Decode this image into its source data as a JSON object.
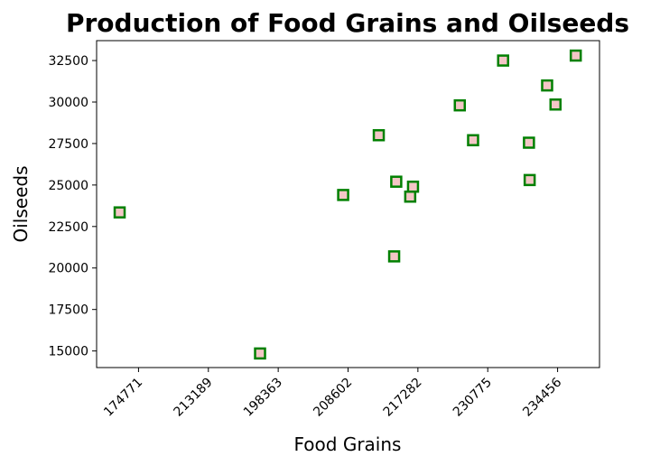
{
  "chart_data": {
    "type": "scatter",
    "title": "Production of Food Grains and Oilseeds",
    "xlabel": "Food Grains",
    "ylabel": "Oilseeds",
    "x_tick_labels": [
      "174771",
      "213189",
      "198363",
      "208602",
      "217282",
      "230775",
      "234456"
    ],
    "y_ticks": [
      15000,
      17500,
      20000,
      22500,
      25000,
      27500,
      30000,
      32500
    ],
    "y_tick_labels": [
      "15000",
      "17500",
      "20000",
      "22500",
      "25000",
      "27500",
      "30000",
      "32500"
    ],
    "xlim": [
      -0.6,
      6.6
    ],
    "ylim": [
      14000,
      33700
    ],
    "grid": false,
    "marker": {
      "shape": "square",
      "face_color": "#f4c6c6",
      "edge_color": "#008000"
    },
    "points": [
      {
        "x": -0.27,
        "y": 23350
      },
      {
        "x": 1.74,
        "y": 14850
      },
      {
        "x": 2.93,
        "y": 24400
      },
      {
        "x": 3.44,
        "y": 28000
      },
      {
        "x": 3.66,
        "y": 20700
      },
      {
        "x": 3.69,
        "y": 25200
      },
      {
        "x": 3.89,
        "y": 24300
      },
      {
        "x": 3.93,
        "y": 24900
      },
      {
        "x": 4.6,
        "y": 29800
      },
      {
        "x": 4.79,
        "y": 27700
      },
      {
        "x": 5.22,
        "y": 32500
      },
      {
        "x": 5.59,
        "y": 27550
      },
      {
        "x": 5.6,
        "y": 25300
      },
      {
        "x": 5.85,
        "y": 31000
      },
      {
        "x": 5.97,
        "y": 29850
      },
      {
        "x": 6.26,
        "y": 32800
      }
    ]
  }
}
